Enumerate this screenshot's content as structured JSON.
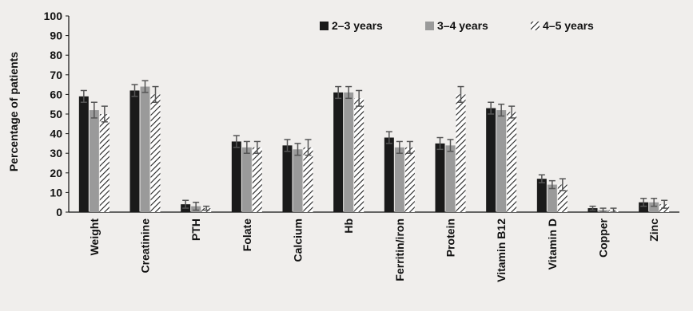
{
  "chart_data": {
    "type": "bar",
    "title": "",
    "xlabel": "",
    "ylabel": "Percentage of patients",
    "ylim": [
      0,
      100
    ],
    "yticks": [
      0,
      10,
      20,
      30,
      40,
      50,
      60,
      70,
      80,
      90,
      100
    ],
    "grid": false,
    "legend_position": "top-right",
    "categories": [
      "Weight",
      "Creatinine",
      "PTH",
      "Folate",
      "Calcium",
      "Hb",
      "Ferritin/iron",
      "Protein",
      "Vitamin B12",
      "Vitamin D",
      "Copper",
      "Zinc"
    ],
    "series": [
      {
        "name": "2–3 years",
        "color": "#1a1a1a",
        "pattern": "solid",
        "values": [
          59,
          62,
          4,
          36,
          34,
          61,
          38,
          35,
          53,
          17,
          2,
          5
        ],
        "errors": [
          3,
          3,
          2,
          3,
          3,
          3,
          3,
          3,
          3,
          2,
          1,
          2
        ]
      },
      {
        "name": "3–4 years",
        "color": "#9a9a9a",
        "pattern": "solid",
        "values": [
          52,
          64,
          3,
          33,
          32,
          61,
          33,
          34,
          52,
          14,
          1,
          5
        ],
        "errors": [
          4,
          3,
          2,
          3,
          3,
          3,
          3,
          3,
          3,
          2,
          1,
          2
        ]
      },
      {
        "name": "4–5 years",
        "color": "#333333",
        "pattern": "hatched",
        "values": [
          50,
          60,
          2,
          33,
          33,
          58,
          33,
          60,
          51,
          14,
          1,
          4
        ],
        "errors": [
          4,
          4,
          1,
          3,
          4,
          4,
          3,
          4,
          3,
          3,
          1,
          2
        ]
      }
    ]
  }
}
